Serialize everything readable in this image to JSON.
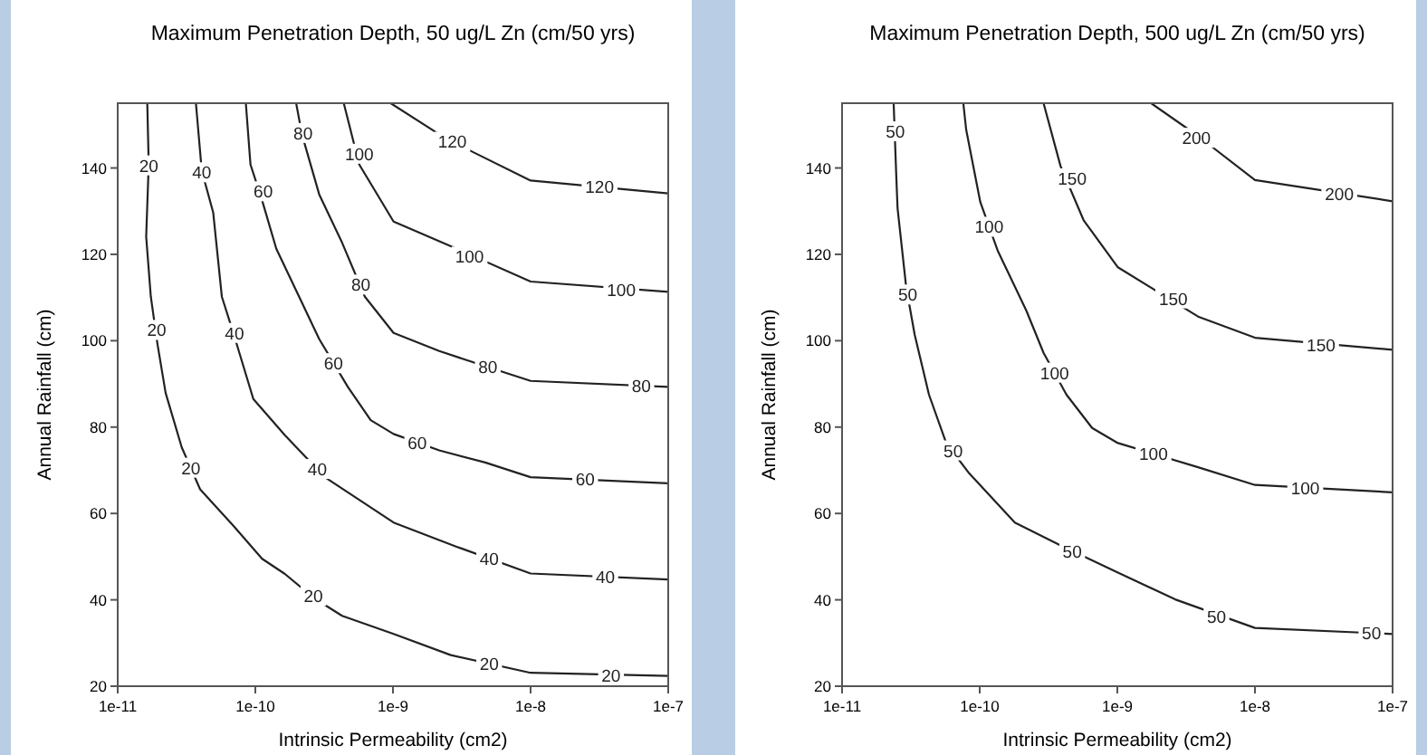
{
  "chart_data": [
    {
      "type": "line",
      "title": "Maximum Penetration Depth, 50 ug/L Zn (cm/50 yrs)",
      "xlabel": "Intrinsic Permeability (cm2)",
      "ylabel": "Annual Rainfall (cm)",
      "log": "x",
      "grid": false,
      "marker": "none",
      "line_style": "solid",
      "xlim": [
        1e-11,
        1e-07
      ],
      "xticks": [
        {
          "value": 1e-11,
          "label": "1e-11"
        },
        {
          "value": 1e-10,
          "label": "1e-10"
        },
        {
          "value": 1e-09,
          "label": "1e-9"
        },
        {
          "value": 1e-08,
          "label": "1e-8"
        },
        {
          "value": 1e-07,
          "label": "1e-7"
        }
      ],
      "ylim": [
        20,
        155
      ],
      "yticks": [
        20,
        40,
        60,
        80,
        100,
        120,
        140
      ],
      "series": [
        {
          "color": "#222222",
          "x": [
            1.64e-11,
            1.68e-11,
            1.61e-11,
            1.74e-11,
            1.95e-11,
            2.23e-11,
            2.92e-11,
            3.97e-11,
            6.9e-11,
            1.12e-10,
            1.64e-10,
            2.64e-10,
            4.27e-10,
            1.01e-09,
            2.63e-09,
            1e-08,
            1e-07
          ],
          "values": [
            155,
            140.8,
            124.1,
            110.2,
            99,
            87.9,
            75.3,
            65.6,
            57.2,
            49.5,
            46,
            40.5,
            36.3,
            32.1,
            27.2,
            23.1,
            22.4
          ]
        },
        {
          "color": "#222222",
          "x": [
            3.7e-11,
            4.08e-11,
            4.94e-11,
            5.71e-11,
            6.92e-11,
            9.67e-11,
            1.64e-10,
            3.2e-10,
            1.01e-09,
            2.9e-09,
            1e-08,
            1e-07
          ],
          "values": [
            155,
            139.4,
            129.7,
            110.2,
            101.8,
            86.5,
            78.1,
            68.4,
            57.9,
            52.3,
            46.1,
            44.7
          ]
        },
        {
          "color": "#222222",
          "x": [
            8.53e-11,
            9.22e-11,
            1.12e-10,
            1.42e-10,
            2.08e-10,
            2.91e-10,
            4.7e-10,
            6.89e-10,
            1.01e-09,
            2.17e-09,
            4.68e-09,
            1e-08,
            1e-07
          ],
          "values": [
            155,
            140.8,
            132.5,
            121.3,
            110.2,
            100.4,
            89.3,
            81.6,
            78.4,
            74.6,
            71.8,
            68.4,
            67
          ]
        },
        {
          "color": "#222222",
          "x": [
            1.98e-10,
            2.18e-10,
            2.91e-10,
            4.27e-10,
            6.25e-10,
            1.01e-09,
            2.17e-09,
            4.68e-09,
            1e-08,
            1e-07
          ],
          "values": [
            155,
            147.8,
            133.9,
            122.7,
            110.2,
            101.8,
            97.6,
            94.1,
            90.7,
            89.3
          ]
        },
        {
          "color": "#222222",
          "x": [
            4.39e-10,
            5.69e-10,
            1.01e-09,
            2.9e-09,
            1e-08,
            1e-07
          ],
          "values": [
            155,
            140.8,
            127.6,
            121.3,
            113.7,
            111.3
          ]
        },
        {
          "color": "#222222",
          "x": [
            9.62e-10,
            2.17e-09,
            3.86e-09,
            1e-08,
            1e-07
          ],
          "values": [
            155,
            147.8,
            143.6,
            137.1,
            134.1
          ]
        }
      ],
      "annotations": [
        {
          "text": "20",
          "x": 1.68e-11,
          "y": 140.6
        },
        {
          "text": "20",
          "x": 1.92e-11,
          "y": 102.5
        },
        {
          "text": "20",
          "x": 3.4e-11,
          "y": 70.6
        },
        {
          "text": "20",
          "x": 2.64e-10,
          "y": 40.9
        },
        {
          "text": "20",
          "x": 5e-09,
          "y": 25.3
        },
        {
          "text": "20",
          "x": 3.84e-08,
          "y": 22.6
        },
        {
          "text": "40",
          "x": 4.08e-11,
          "y": 139
        },
        {
          "text": "40",
          "x": 7.05e-11,
          "y": 101.8
        },
        {
          "text": "40",
          "x": 2.82e-10,
          "y": 70.3
        },
        {
          "text": "40",
          "x": 5e-09,
          "y": 49.6
        },
        {
          "text": "40",
          "x": 3.49e-08,
          "y": 45.4
        },
        {
          "text": "60",
          "x": 1.14e-10,
          "y": 134.6
        },
        {
          "text": "60",
          "x": 3.7e-10,
          "y": 94.8
        },
        {
          "text": "60",
          "x": 1.5e-09,
          "y": 76.4
        },
        {
          "text": "60",
          "x": 2.49e-08,
          "y": 67.9
        },
        {
          "text": "80",
          "x": 2.22e-10,
          "y": 148.1
        },
        {
          "text": "80",
          "x": 5.85e-10,
          "y": 113
        },
        {
          "text": "80",
          "x": 4.89e-09,
          "y": 94.1
        },
        {
          "text": "80",
          "x": 6.38e-08,
          "y": 89.5
        },
        {
          "text": "100",
          "x": 5.69e-10,
          "y": 143.3
        },
        {
          "text": "100",
          "x": 3.6e-09,
          "y": 119.5
        },
        {
          "text": "100",
          "x": 4.56e-08,
          "y": 111.8
        },
        {
          "text": "120",
          "x": 2.7e-09,
          "y": 146.1
        },
        {
          "text": "120",
          "x": 3.17e-08,
          "y": 135.7
        }
      ]
    },
    {
      "type": "line",
      "title": "Maximum Penetration Depth, 500 ug/L Zn (cm/50 yrs)",
      "xlabel": "Intrinsic Permeability (cm2)",
      "ylabel": "Annual Rainfall (cm)",
      "log": "x",
      "grid": false,
      "marker": "none",
      "line_style": "solid",
      "xlim": [
        1e-11,
        1e-07
      ],
      "xticks": [
        {
          "value": 1e-11,
          "label": "1e-11"
        },
        {
          "value": 1e-10,
          "label": "1e-10"
        },
        {
          "value": 1e-09,
          "label": "1e-9"
        },
        {
          "value": 1e-08,
          "label": "1e-8"
        },
        {
          "value": 1e-07,
          "label": "1e-7"
        }
      ],
      "ylim": [
        20,
        155
      ],
      "yticks": [
        20,
        40,
        60,
        80,
        100,
        120,
        140
      ],
      "series": [
        {
          "color": "#222222",
          "x": [
            2.37e-11,
            2.48e-11,
            2.53e-11,
            2.92e-11,
            3.37e-11,
            4.28e-11,
            5.71e-11,
            8.38e-11,
            1.8e-10,
            3.87e-10,
            1.01e-09,
            2.63e-09,
            1e-08,
            1e-07
          ],
          "values": [
            155,
            137.6,
            130.7,
            112.5,
            101.4,
            87.5,
            76.3,
            69.3,
            57.9,
            52.6,
            46.3,
            40.1,
            33.5,
            32.1
          ]
        },
        {
          "color": "#222222",
          "x": [
            7.6e-11,
            7.98e-11,
            1.01e-10,
            1.35e-10,
            2.18e-10,
            2.91e-10,
            4.27e-10,
            6.56e-10,
            1.01e-09,
            3.86e-09,
            1e-08,
            1e-07
          ],
          "values": [
            155,
            148.8,
            132.1,
            120.9,
            107,
            97.2,
            87.5,
            79.8,
            76.3,
            70.7,
            66.6,
            64.9
          ]
        },
        {
          "color": "#222222",
          "x": [
            2.91e-10,
            3.87e-10,
            5.69e-10,
            1.01e-09,
            3.86e-09,
            1e-08,
            1e-07
          ],
          "values": [
            155,
            140.4,
            127.9,
            117,
            105.6,
            100.7,
            97.9
          ]
        },
        {
          "color": "#222222",
          "x": [
            1.76e-09,
            3.86e-09,
            1e-08,
            1e-07
          ],
          "values": [
            155,
            147.4,
            137.2,
            132.3
          ]
        }
      ],
      "annotations": [
        {
          "text": "50",
          "x": 2.44e-11,
          "y": 148.5
        },
        {
          "text": "50",
          "x": 3e-11,
          "y": 110.7
        },
        {
          "text": "50",
          "x": 6.41e-11,
          "y": 74.6
        },
        {
          "text": "50",
          "x": 4.7e-10,
          "y": 51.2
        },
        {
          "text": "50",
          "x": 5.25e-09,
          "y": 36.2
        },
        {
          "text": "50",
          "x": 7.02e-08,
          "y": 32.4
        },
        {
          "text": "100",
          "x": 1.17e-10,
          "y": 126.4
        },
        {
          "text": "100",
          "x": 3.5e-10,
          "y": 92.6
        },
        {
          "text": "100",
          "x": 1.83e-09,
          "y": 73.8
        },
        {
          "text": "100",
          "x": 2.32e-08,
          "y": 65.9
        },
        {
          "text": "150",
          "x": 4.7e-10,
          "y": 137.6
        },
        {
          "text": "150",
          "x": 2.55e-09,
          "y": 109.8
        },
        {
          "text": "150",
          "x": 3.02e-08,
          "y": 99
        },
        {
          "text": "200",
          "x": 3.75e-09,
          "y": 147
        },
        {
          "text": "200",
          "x": 4.1e-08,
          "y": 134.1
        }
      ]
    }
  ]
}
